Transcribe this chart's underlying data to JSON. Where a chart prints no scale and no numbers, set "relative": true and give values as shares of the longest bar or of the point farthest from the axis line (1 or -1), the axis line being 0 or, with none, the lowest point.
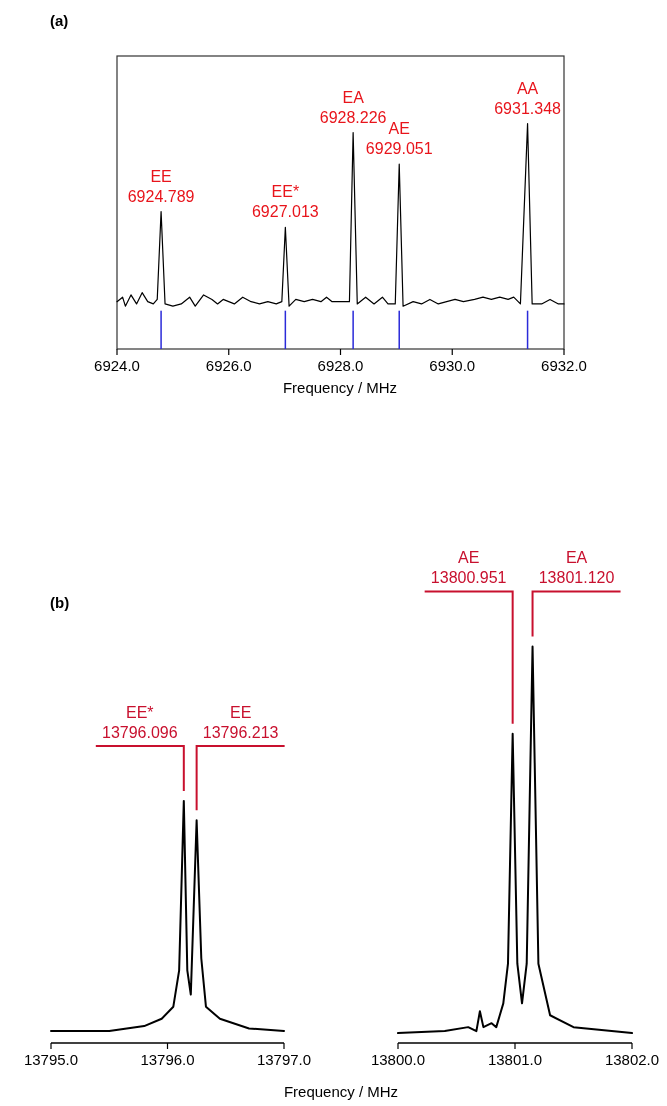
{
  "chart_data": [
    {
      "type": "line",
      "title": "(a)",
      "xlabel": "Frequency / MHz",
      "relative": true,
      "xlim": [
        6924,
        6932
      ],
      "xticks": [
        {
          "value": 6924,
          "label": "6924.0"
        },
        {
          "value": 6926,
          "label": "6926.0"
        },
        {
          "value": 6928,
          "label": "6928.0"
        },
        {
          "value": 6930,
          "label": "6930.0"
        },
        {
          "value": 6932,
          "label": "6932.0"
        }
      ],
      "series": [
        {
          "color": "#000000",
          "x": [
            6924.0,
            6924.1,
            6924.15,
            6924.25,
            6924.35,
            6924.45,
            6924.55,
            6924.65,
            6924.72,
            6924.789,
            6924.86,
            6925.0,
            6925.15,
            6925.3,
            6925.4,
            6925.55,
            6925.7,
            6925.8,
            6925.9,
            6926.1,
            6926.25,
            6926.4,
            6926.55,
            6926.7,
            6926.85,
            6926.95,
            6927.013,
            6927.08,
            6927.2,
            6927.35,
            6927.5,
            6927.65,
            6927.75,
            6927.85,
            6928.16,
            6928.226,
            6928.3,
            6928.45,
            6928.6,
            6928.75,
            6928.85,
            6928.98,
            6929.051,
            6929.12,
            6929.3,
            6929.45,
            6929.6,
            6929.75,
            6929.9,
            6930.05,
            6930.2,
            6930.4,
            6930.55,
            6930.7,
            6930.85,
            6931.0,
            6931.1,
            6931.22,
            6931.348,
            6931.43,
            6931.6,
            6931.75,
            6931.9,
            6932.0
          ],
          "values": [
            0.21,
            0.23,
            0.19,
            0.24,
            0.2,
            0.25,
            0.21,
            0.2,
            0.22,
            0.61,
            0.2,
            0.19,
            0.2,
            0.23,
            0.19,
            0.24,
            0.22,
            0.2,
            0.22,
            0.2,
            0.23,
            0.21,
            0.2,
            0.21,
            0.2,
            0.21,
            0.54,
            0.19,
            0.22,
            0.21,
            0.22,
            0.21,
            0.23,
            0.21,
            0.21,
            0.96,
            0.2,
            0.23,
            0.2,
            0.23,
            0.2,
            0.2,
            0.82,
            0.19,
            0.21,
            0.2,
            0.22,
            0.2,
            0.21,
            0.22,
            0.21,
            0.22,
            0.23,
            0.22,
            0.23,
            0.22,
            0.23,
            0.2,
            1,
            0.2,
            0.2,
            0.22,
            0.2,
            0.2
          ]
        },
        {
          "type": "bar",
          "color": "#2b2bd9",
          "x": [
            6924.789,
            6927.013,
            6928.226,
            6929.051,
            6931.348
          ],
          "values": [
            0.17,
            0.17,
            0.17,
            0.17,
            0.17
          ]
        }
      ],
      "annotations": [
        {
          "text": "EE\n6924.789",
          "x": 6924.789,
          "y": 0.61
        },
        {
          "text": "EE*\n6927.013",
          "x": 6927.013,
          "y": 0.54
        },
        {
          "text": "EA\n6928.226",
          "x": 6928.226,
          "y": 0.96
        },
        {
          "text": "AE\n6929.051",
          "x": 6929.051,
          "y": 0.82
        },
        {
          "text": "AA\n6931.348",
          "x": 6931.348,
          "y": 1
        }
      ]
    },
    {
      "type": "line",
      "title": "(b)",
      "xlabel": "Frequency / MHz",
      "relative": true,
      "xlim": [
        13795,
        13797
      ],
      "xticks": [
        {
          "value": 13795,
          "label": "13795.0"
        },
        {
          "value": 13796,
          "label": "13796.0"
        },
        {
          "value": 13797,
          "label": "13797.0"
        }
      ],
      "series": [
        {
          "color": "#000000",
          "x": [
            13795,
            13795.5,
            13795.8,
            13795.95,
            13796.05,
            13796.1,
            13796.14,
            13796.17,
            13796.2,
            13796.25,
            13796.29,
            13796.33,
            13796.45,
            13796.7,
            13797
          ],
          "values": [
            0.05,
            0.05,
            0.07,
            0.1,
            0.15,
            0.3,
            1,
            0.3,
            0.2,
            0.92,
            0.35,
            0.15,
            0.1,
            0.06,
            0.05
          ]
        }
      ],
      "annotations": [
        "EE*\n13796.096",
        "EE\n13796.213"
      ]
    },
    {
      "type": "line",
      "relative": true,
      "xlim": [
        13800,
        13802
      ],
      "xticks": [
        {
          "value": 13800,
          "label": "13800.0"
        },
        {
          "value": 13801,
          "label": "13801.0"
        },
        {
          "value": 13802,
          "label": "13802.0"
        }
      ],
      "series": [
        {
          "color": "#000000",
          "x": [
            13800,
            13800.4,
            13800.6,
            13800.67,
            13800.7,
            13800.73,
            13800.8,
            13800.84,
            13800.87,
            13800.9,
            13800.94,
            13800.98,
            13801.02,
            13801.06,
            13801.1,
            13801.15,
            13801.2,
            13801.3,
            13801.5,
            13802
          ],
          "values": [
            0.025,
            0.03,
            0.04,
            0.03,
            0.08,
            0.04,
            0.05,
            0.04,
            0.07,
            0.1,
            0.2,
            0.78,
            0.2,
            0.1,
            0.2,
            1,
            0.2,
            0.07,
            0.04,
            0.025
          ]
        }
      ],
      "annotations": [
        "AE\n13800.951",
        "EA\n13801.120"
      ]
    }
  ]
}
